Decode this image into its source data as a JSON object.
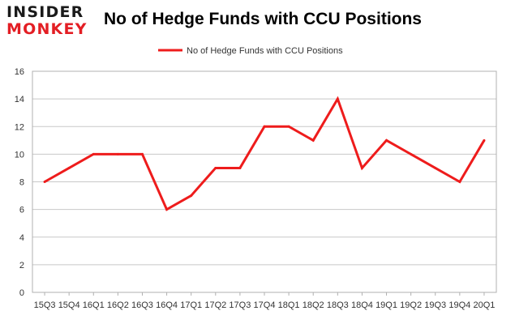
{
  "logo": {
    "line1": "INSIDER",
    "line2": "MONKEY"
  },
  "chart_data": {
    "type": "line",
    "title": "No of Hedge Funds with CCU Positions",
    "xlabel": "",
    "ylabel": "",
    "categories": [
      "15Q3",
      "15Q4",
      "16Q1",
      "16Q2",
      "16Q3",
      "16Q4",
      "17Q1",
      "17Q2",
      "17Q3",
      "17Q4",
      "18Q1",
      "18Q2",
      "18Q3",
      "18Q4",
      "19Q1",
      "19Q2",
      "19Q3",
      "19Q4",
      "20Q1"
    ],
    "series": [
      {
        "name": "No of Hedge Funds with CCU Positions",
        "values": [
          8,
          9,
          10,
          10,
          10,
          6,
          7,
          9,
          9,
          12,
          12,
          11,
          14,
          9,
          11,
          10,
          9,
          8,
          11
        ],
        "color": "#ee1c1c"
      }
    ],
    "ylim": [
      0,
      16
    ],
    "yticks": [
      0,
      2,
      4,
      6,
      8,
      10,
      12,
      14,
      16
    ],
    "grid": true,
    "legend": "top-center"
  }
}
